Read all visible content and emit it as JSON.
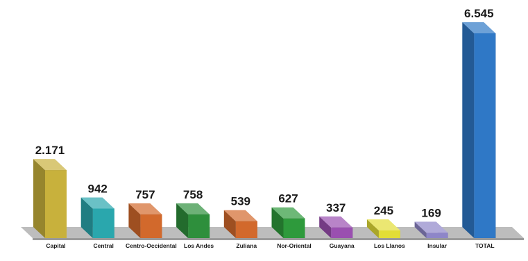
{
  "chart_data": {
    "type": "bar",
    "title": "",
    "xlabel": "",
    "ylabel": "",
    "categories": [
      "Capital",
      "Central",
      "Centro-Occidental",
      "Los Andes",
      "Zuliana",
      "Nor-Oriental",
      "Guayana",
      "Los Llanos",
      "Insular",
      "TOTAL"
    ],
    "values": [
      2171,
      942,
      757,
      758,
      539,
      627,
      337,
      245,
      169,
      6545
    ],
    "value_labels": [
      "2.171",
      "942",
      "757",
      "758",
      "539",
      "627",
      "337",
      "245",
      "169",
      "6.545"
    ],
    "colors": [
      "#c8b13c",
      "#2aa7ad",
      "#d2692c",
      "#2e8f3c",
      "#d2692c",
      "#2e9a3c",
      "#9a4fb0",
      "#e2dd36",
      "#8e86c8",
      "#2f78c6"
    ],
    "ylim": [
      0,
      6545
    ],
    "grid": false,
    "legend": "none"
  }
}
